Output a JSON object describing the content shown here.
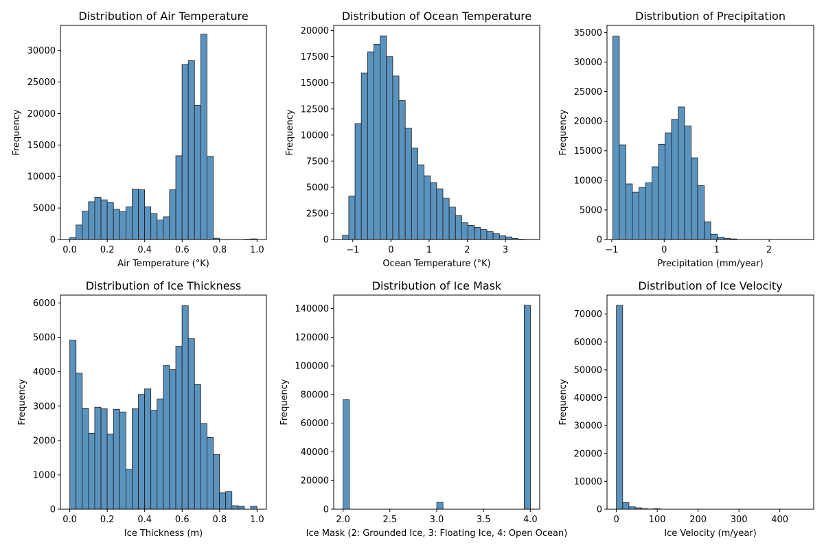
{
  "chart_data": [
    {
      "type": "bar",
      "title": "Distribution of Air Temperature",
      "xlabel": "Air Temperature (°K)",
      "ylabel": "Frequency",
      "xlim": [
        -0.05,
        1.05
      ],
      "ylim": [
        0,
        34000
      ],
      "bin_start": 0.0,
      "bin_width": 0.0333,
      "values": [
        300,
        2300,
        4500,
        6000,
        6700,
        6300,
        5900,
        4800,
        4400,
        5200,
        8000,
        7900,
        5200,
        4100,
        3100,
        3600,
        7900,
        13300,
        27800,
        28400,
        21300,
        32600,
        13200,
        200,
        0,
        0,
        0,
        0,
        50,
        100
      ],
      "xticks": [
        0.0,
        0.2,
        0.4,
        0.6,
        0.8,
        1.0
      ],
      "xtick_labels": [
        "0.0",
        "0.2",
        "0.4",
        "0.6",
        "0.8",
        "1.0"
      ],
      "yticks": [
        0,
        5000,
        10000,
        15000,
        20000,
        25000,
        30000
      ],
      "ytick_labels": [
        "0",
        "5000",
        "10000",
        "15000",
        "20000",
        "25000",
        "30000"
      ],
      "bar_color": "#5b93bf"
    },
    {
      "type": "bar",
      "title": "Distribution of Ocean Temperature",
      "xlabel": "Ocean Temperature (°K)",
      "ylabel": "Frequency",
      "xlim": [
        -1.5,
        3.9
      ],
      "ylim": [
        0,
        20500
      ],
      "bin_start": -1.27,
      "bin_width": 0.1645,
      "values": [
        400,
        4150,
        11100,
        15950,
        17950,
        18700,
        19500,
        17500,
        15650,
        13300,
        10650,
        8750,
        7150,
        6100,
        5450,
        4850,
        3950,
        3100,
        2300,
        1600,
        1350,
        1150,
        950,
        750,
        550,
        350,
        250,
        100,
        30,
        10
      ],
      "xticks": [
        -1,
        0,
        1,
        2,
        3
      ],
      "xtick_labels": [
        "−1",
        "0",
        "1",
        "2",
        "3"
      ],
      "yticks": [
        0,
        2500,
        5000,
        7500,
        10000,
        12500,
        15000,
        17500,
        20000
      ],
      "ytick_labels": [
        "0",
        "2500",
        "5000",
        "7500",
        "10000",
        "12500",
        "15000",
        "17500",
        "20000"
      ],
      "bar_color": "#5b93bf"
    },
    {
      "type": "bar",
      "title": "Distribution of Precipitation",
      "xlabel": "Precipitation (mm/year)",
      "ylabel": "Frequency",
      "xlim": [
        -1.09,
        2.85
      ],
      "ylim": [
        0,
        36200
      ],
      "bin_start": -0.98,
      "bin_width": 0.1245,
      "values": [
        34400,
        16000,
        9400,
        8000,
        8800,
        9600,
        12300,
        16100,
        18000,
        20300,
        22400,
        19200,
        13800,
        9100,
        3000,
        900,
        400,
        200,
        100,
        0,
        0,
        0,
        0,
        0,
        0,
        0,
        0,
        0,
        0,
        0
      ],
      "xticks": [
        -1,
        0,
        1,
        2
      ],
      "xtick_labels": [
        "−1",
        "0",
        "1",
        "2"
      ],
      "yticks": [
        0,
        5000,
        10000,
        15000,
        20000,
        25000,
        30000,
        35000
      ],
      "ytick_labels": [
        "0",
        "5000",
        "10000",
        "15000",
        "20000",
        "25000",
        "30000",
        "35000"
      ],
      "bar_color": "#5b93bf"
    },
    {
      "type": "bar",
      "title": "Distribution of Ice Thickness",
      "xlabel": "Ice Thickness (m)",
      "ylabel": "Frequency",
      "xlim": [
        -0.05,
        1.05
      ],
      "ylim": [
        0,
        6230
      ],
      "bin_start": 0.0,
      "bin_width": 0.0333,
      "values": [
        4920,
        3960,
        2930,
        2210,
        2970,
        2920,
        2190,
        2910,
        2830,
        1160,
        2920,
        3340,
        3500,
        2870,
        3210,
        4180,
        4060,
        4740,
        5920,
        4960,
        3630,
        2490,
        2090,
        1590,
        480,
        510,
        100,
        90,
        0,
        90
      ],
      "xticks": [
        0.0,
        0.2,
        0.4,
        0.6,
        0.8,
        1.0
      ],
      "xtick_labels": [
        "0.0",
        "0.2",
        "0.4",
        "0.6",
        "0.8",
        "1.0"
      ],
      "yticks": [
        0,
        1000,
        2000,
        3000,
        4000,
        5000,
        6000
      ],
      "ytick_labels": [
        "0",
        "1000",
        "2000",
        "3000",
        "4000",
        "5000",
        "6000"
      ],
      "bar_color": "#5b93bf"
    },
    {
      "type": "bar",
      "title": "Distribution of Ice Mask",
      "xlabel": "Ice Mask (2: Grounded Ice, 3: Floating Ice, 4: Open Ocean)",
      "ylabel": "Frequency",
      "xlim": [
        1.9,
        4.1
      ],
      "ylim": [
        0,
        149400
      ],
      "bin_start": 2.0,
      "bin_width": 0.0667,
      "values": [
        76400,
        0,
        0,
        0,
        0,
        0,
        0,
        0,
        0,
        0,
        0,
        0,
        0,
        0,
        0,
        4800,
        0,
        0,
        0,
        0,
        0,
        0,
        0,
        0,
        0,
        0,
        0,
        0,
        0,
        142300
      ],
      "xticks": [
        2.0,
        2.5,
        3.0,
        3.5,
        4.0
      ],
      "xtick_labels": [
        "2.0",
        "2.5",
        "3.0",
        "3.5",
        "4.0"
      ],
      "yticks": [
        0,
        20000,
        40000,
        60000,
        80000,
        100000,
        120000,
        140000
      ],
      "ytick_labels": [
        "0",
        "20000",
        "40000",
        "60000",
        "80000",
        "100000",
        "120000",
        "140000"
      ],
      "bar_color": "#5b93bf"
    },
    {
      "type": "bar",
      "title": "Distribution of Ice Velocity",
      "xlabel": "Ice Velocity (m/year)",
      "ylabel": "Frequency",
      "xlim": [
        -23,
        483
      ],
      "ylim": [
        0,
        76800
      ],
      "bin_start": 0,
      "bin_width": 15.33,
      "values": [
        73100,
        2400,
        900,
        500,
        200,
        100,
        200,
        0,
        0,
        0,
        0,
        0,
        0,
        0,
        0,
        0,
        0,
        0,
        0,
        0,
        0,
        0,
        0,
        0,
        0,
        0,
        0,
        0,
        0,
        0
      ],
      "xticks": [
        0,
        100,
        200,
        300,
        400
      ],
      "xtick_labels": [
        "0",
        "100",
        "200",
        "300",
        "400"
      ],
      "yticks": [
        0,
        10000,
        20000,
        30000,
        40000,
        50000,
        60000,
        70000
      ],
      "ytick_labels": [
        "0",
        "10000",
        "20000",
        "30000",
        "40000",
        "50000",
        "60000",
        "70000"
      ],
      "bar_color": "#5b93bf"
    }
  ]
}
